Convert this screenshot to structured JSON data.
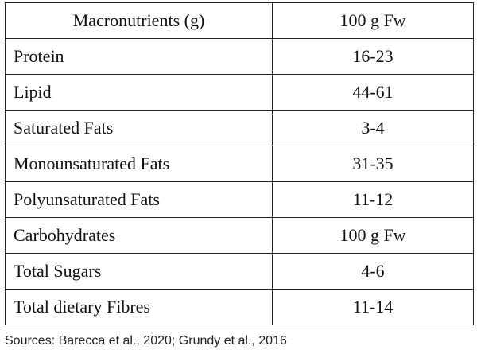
{
  "table": {
    "headers": [
      "Macronutrients (g)",
      "100 g Fw"
    ],
    "rows": [
      {
        "label": "Protein",
        "value": "16-23"
      },
      {
        "label": "Lipid",
        "value": "44-61"
      },
      {
        "label": "Saturated Fats",
        "value": "3-4"
      },
      {
        "label": "Monounsaturated Fats",
        "value": "31-35"
      },
      {
        "label": "Polyunsaturated Fats",
        "value": "11-12"
      },
      {
        "label": "Carbohydrates",
        "value": "100 g Fw"
      },
      {
        "label": "Total Sugars",
        "value": "4-6"
      },
      {
        "label": "Total dietary Fibres",
        "value": "11-14"
      }
    ]
  },
  "source": "Sources: Barecca et al., 2020; Grundy et al., 2016"
}
